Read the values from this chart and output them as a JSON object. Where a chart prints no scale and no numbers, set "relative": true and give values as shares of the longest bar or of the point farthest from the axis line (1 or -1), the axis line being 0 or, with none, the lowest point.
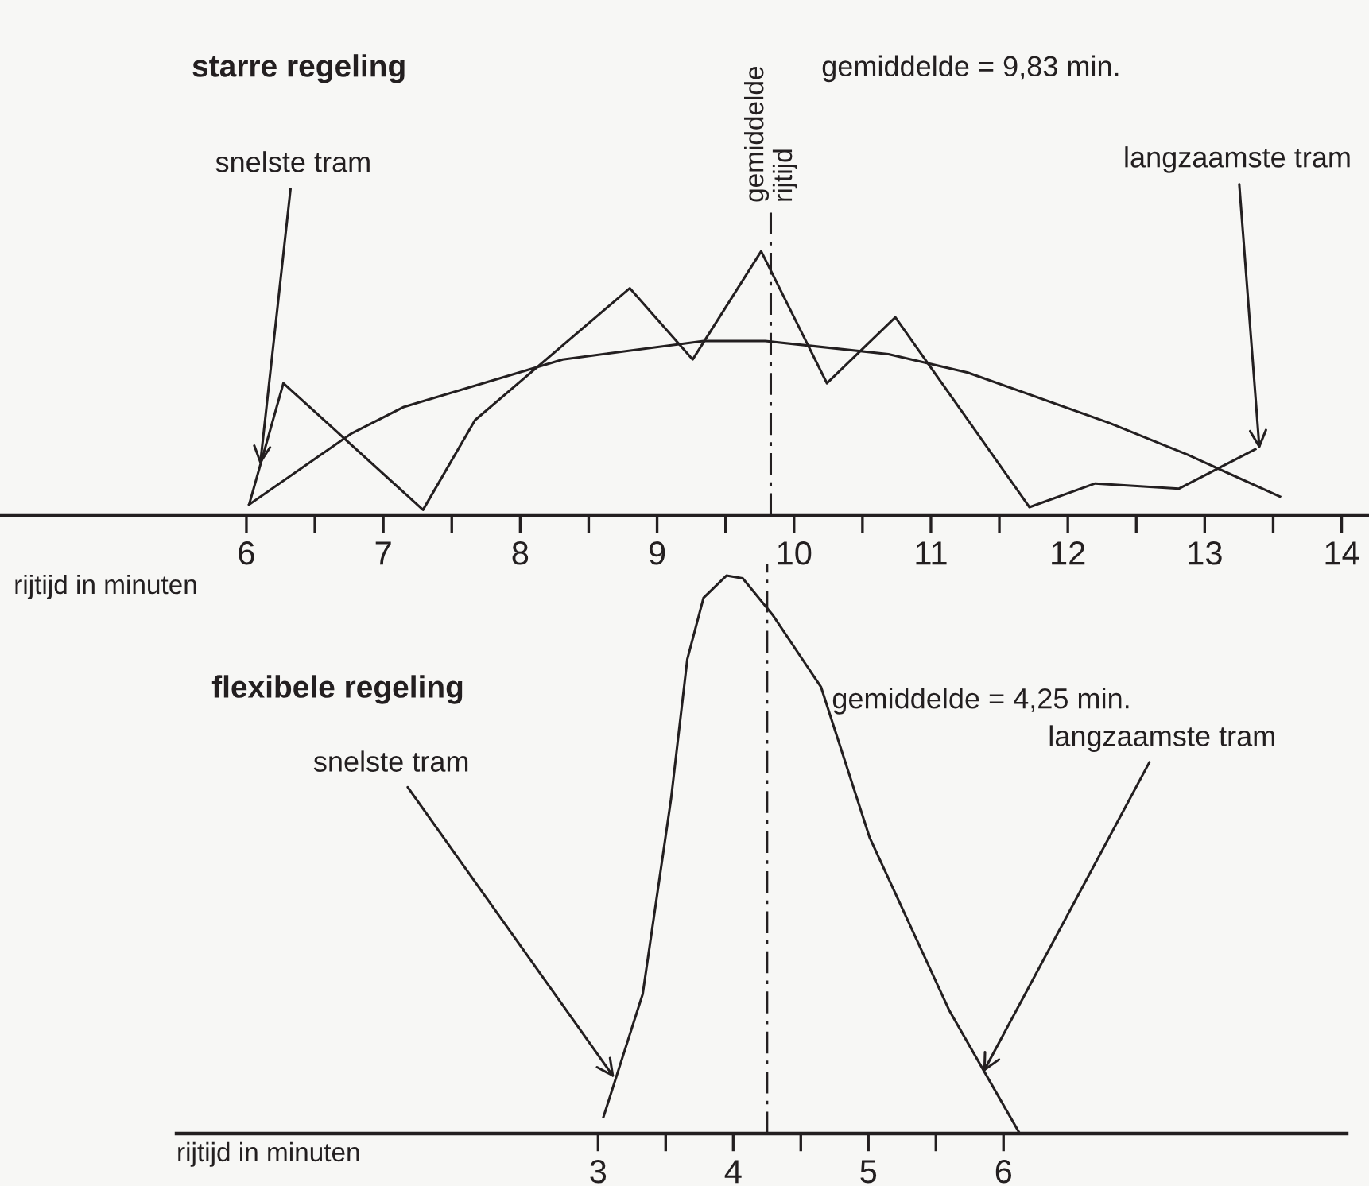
{
  "chart_data": [
    {
      "type": "line",
      "relative": true,
      "title": "starre regeling",
      "xlabel": "rijtijd in minuten",
      "xlim": [
        4.2,
        14.2
      ],
      "xticks": [
        6,
        {
          "value": 6.5,
          "label": null
        },
        7,
        {
          "value": 7.5,
          "label": null
        },
        8,
        {
          "value": 8.5,
          "label": null
        },
        9,
        {
          "value": 9.5,
          "label": null
        },
        10,
        {
          "value": 10.5,
          "label": null
        },
        11,
        {
          "value": 11.5,
          "label": null
        },
        12,
        {
          "value": 12.5,
          "label": null
        },
        13,
        {
          "value": 13.5,
          "label": null
        },
        14
      ],
      "series": [
        {
          "color": "#231f20",
          "x": [
            6.02,
            6.27,
            7.29,
            7.67,
            8.8,
            9.26,
            9.76,
            10.24,
            10.74,
            11.72,
            12.2,
            12.81,
            13.37
          ],
          "values": [
            0.04,
            0.5,
            0.02,
            0.36,
            0.86,
            0.59,
            1,
            0.5,
            0.75,
            0.03,
            0.12,
            0.1,
            0.25
          ]
        },
        {
          "color": "#231f20",
          "x": [
            6.02,
            6.77,
            7.15,
            8.31,
            9.34,
            9.79,
            10.69,
            11.27,
            12.3,
            12.87,
            13.55
          ],
          "values": [
            0.04,
            0.31,
            0.41,
            0.59,
            0.66,
            0.66,
            0.61,
            0.54,
            0.35,
            0.23,
            0.07
          ]
        }
      ],
      "ref_lines": [
        {
          "axis": "x",
          "value": 9.83,
          "label": "gemiddelde\nrijtijd",
          "color": "#231f20",
          "line_style": "dashed"
        }
      ],
      "annotations": [
        "gemiddelde = 9,83 min.",
        {
          "text": "snelste tram",
          "x": 6.1,
          "y": 0.19
        },
        {
          "text": "langzaamste tram",
          "x": 13.4,
          "y": 0.25
        }
      ],
      "grid": false,
      "marker": "none",
      "line_style": "solid"
    },
    {
      "type": "line",
      "relative": true,
      "title": "flexibele regeling",
      "xlabel": "rijtijd in minuten",
      "xlim": [
        -0.12,
        8.54
      ],
      "xticks": [
        3,
        {
          "value": 3.5,
          "label": null
        },
        4,
        {
          "value": 4.5,
          "label": null
        },
        5,
        {
          "value": 5.5,
          "label": null
        },
        6
      ],
      "series": [
        {
          "color": "#231f20",
          "x": [
            3.04,
            3.33,
            3.54,
            3.66,
            3.78,
            3.95,
            4.07,
            4.29,
            4.65,
            5.01,
            5.6,
            6.12
          ],
          "values": [
            0.03,
            0.25,
            0.6,
            0.85,
            0.96,
            1,
            0.995,
            0.93,
            0.8,
            0.53,
            0.22,
            0
          ]
        }
      ],
      "ref_lines": [
        {
          "axis": "x",
          "value": 4.25,
          "color": "#231f20",
          "line_style": "dashed"
        }
      ],
      "annotations": [
        "gemiddelde = 4,25 min.",
        {
          "text": "snelste tram",
          "x": 3.12,
          "y": 0.1
        },
        {
          "text": "langzaamste tram",
          "x": 5.85,
          "y": 0.11
        }
      ],
      "grid": false,
      "marker": "none",
      "line_style": "solid"
    }
  ]
}
